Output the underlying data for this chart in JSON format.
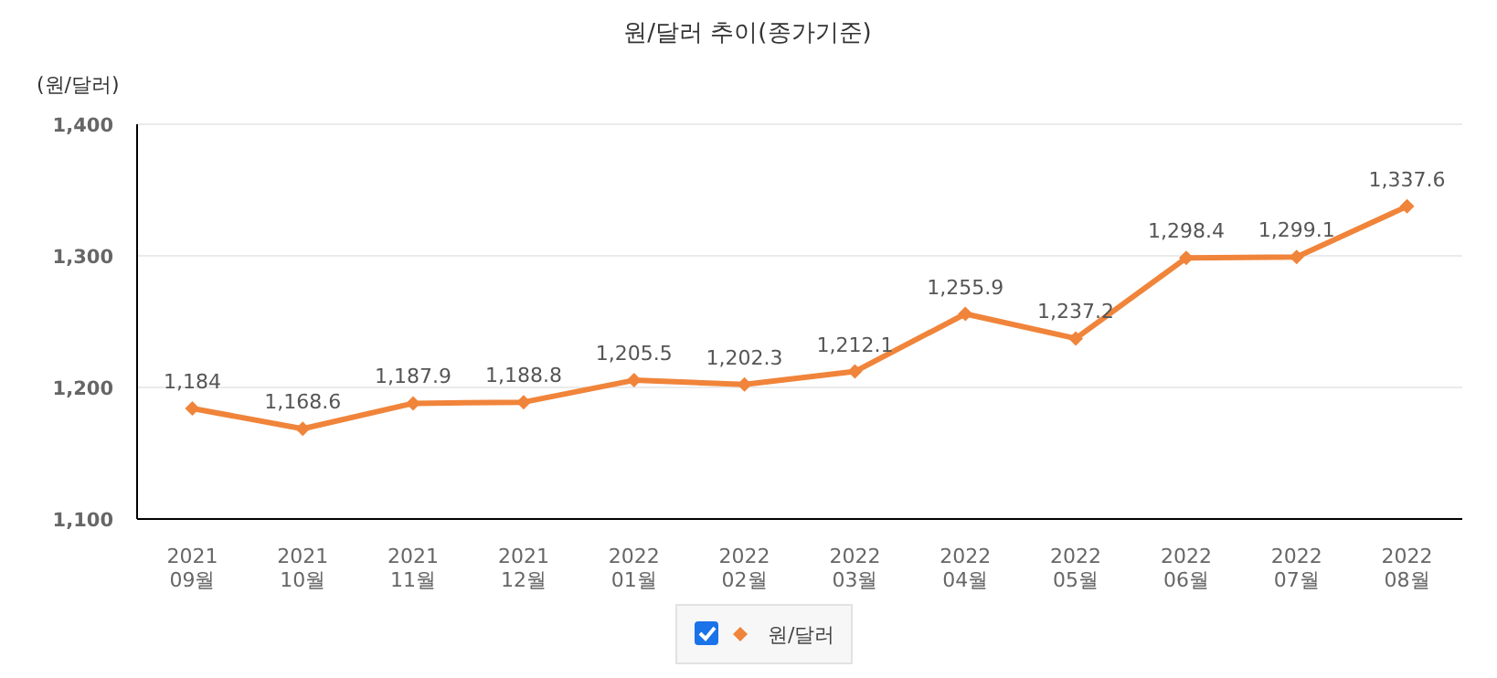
{
  "chart_data": {
    "type": "line",
    "title": "원/달러 추이(종가기준)",
    "ylabel": "(원/달러)",
    "categories": [
      "2021 09월",
      "2021 10월",
      "2021 11월",
      "2021 12월",
      "2022 01월",
      "2022 02월",
      "2022 03월",
      "2022 04월",
      "2022 05월",
      "2022 06월",
      "2022 07월",
      "2022 08월"
    ],
    "series": [
      {
        "name": "원/달러",
        "color": "#f0843a",
        "values": [
          1184,
          1168.6,
          1187.9,
          1188.8,
          1205.5,
          1202.3,
          1212.1,
          1255.9,
          1237.2,
          1298.4,
          1299.1,
          1337.6
        ],
        "value_labels": [
          "1,184",
          "1,168.6",
          "1,187.9",
          "1,188.8",
          "1,205.5",
          "1,202.3",
          "1,212.1",
          "1,255.9",
          "1,237.2",
          "1,298.4",
          "1,299.1",
          "1,337.6"
        ]
      }
    ],
    "ylim": [
      1100,
      1400
    ],
    "yticks": [
      {
        "value": 1100,
        "label": "1,100"
      },
      {
        "value": 1200,
        "label": "1,200"
      },
      {
        "value": 1300,
        "label": "1,300"
      },
      {
        "value": 1400,
        "label": "1,400"
      }
    ],
    "grid": "y",
    "legend": "bottom",
    "marker": "diamond",
    "line_style": "solid"
  }
}
